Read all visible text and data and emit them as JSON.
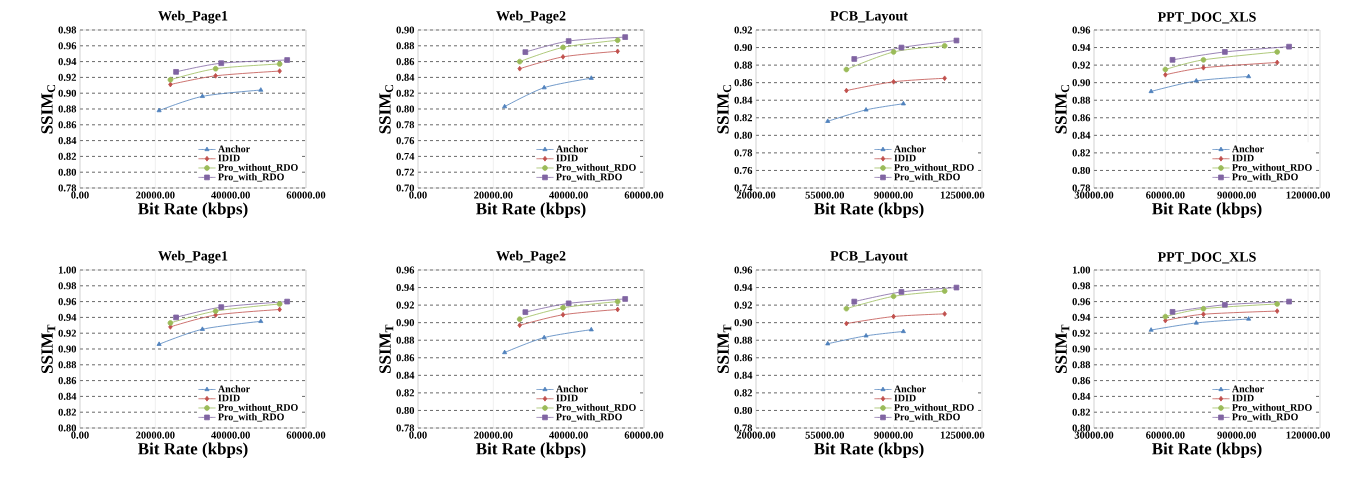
{
  "chart_data": [
    {
      "type": "line",
      "title": "Web_Page1",
      "xlabel": "Bit Rate (kbps)",
      "ylabel": "SSIM$_{C}$",
      "grid": true,
      "legend": "bottom right",
      "xlim": [
        0,
        60000
      ],
      "ylim": [
        0.78,
        0.98
      ],
      "xticks": [
        {
          "value": 0,
          "label": "0.00"
        },
        {
          "value": 20000,
          "label": "20000.00"
        },
        {
          "value": 40000,
          "label": "40000.00"
        },
        {
          "value": 60000,
          "label": "60000.00"
        }
      ],
      "yticks": [
        {
          "value": 0.78,
          "label": "0.78"
        },
        {
          "value": 0.8,
          "label": "0.80"
        },
        {
          "value": 0.82,
          "label": "0.82"
        },
        {
          "value": 0.84,
          "label": "0.84"
        },
        {
          "value": 0.86,
          "label": "0.86"
        },
        {
          "value": 0.88,
          "label": "0.88"
        },
        {
          "value": 0.9,
          "label": "0.90"
        },
        {
          "value": 0.92,
          "label": "0.92"
        },
        {
          "value": 0.94,
          "label": "0.94"
        },
        {
          "value": 0.96,
          "label": "0.96"
        },
        {
          "value": 0.98,
          "label": "0.98"
        }
      ],
      "series": [
        {
          "name": "Anchor",
          "color": "#4f81bd",
          "marker": "triangle",
          "x": [
            21000,
            32500,
            48000
          ],
          "values": [
            0.878,
            0.896,
            0.904
          ]
        },
        {
          "name": "IDID",
          "color": "#c0504d",
          "marker": "diamond",
          "x": [
            24000,
            36000,
            53000
          ],
          "values": [
            0.911,
            0.922,
            0.928
          ]
        },
        {
          "name": "Pro_without_RDO",
          "color": "#9bbb59",
          "marker": "circle",
          "x": [
            24000,
            36000,
            53000
          ],
          "values": [
            0.917,
            0.931,
            0.937
          ]
        },
        {
          "name": "Pro_with_RDO",
          "color": "#8064a2",
          "marker": "square",
          "x": [
            25500,
            37500,
            55000
          ],
          "values": [
            0.927,
            0.938,
            0.942
          ]
        }
      ]
    },
    {
      "type": "line",
      "title": "Web_Page2",
      "xlabel": "Bit Rate (kbps)",
      "ylabel": "SSIM$_{C}$",
      "grid": true,
      "legend": "bottom right",
      "xlim": [
        0,
        60000
      ],
      "ylim": [
        0.7,
        0.9
      ],
      "xticks": [
        {
          "value": 0,
          "label": "0.00"
        },
        {
          "value": 20000,
          "label": "20000.00"
        },
        {
          "value": 40000,
          "label": "40000.00"
        },
        {
          "value": 60000,
          "label": "60000.00"
        }
      ],
      "yticks": [
        {
          "value": 0.7,
          "label": "0.70"
        },
        {
          "value": 0.72,
          "label": "0.72"
        },
        {
          "value": 0.74,
          "label": "0.74"
        },
        {
          "value": 0.76,
          "label": "0.76"
        },
        {
          "value": 0.78,
          "label": "0.78"
        },
        {
          "value": 0.8,
          "label": "0.80"
        },
        {
          "value": 0.82,
          "label": "0.82"
        },
        {
          "value": 0.84,
          "label": "0.84"
        },
        {
          "value": 0.86,
          "label": "0.86"
        },
        {
          "value": 0.88,
          "label": "0.88"
        },
        {
          "value": 0.9,
          "label": "0.90"
        }
      ],
      "series": [
        {
          "name": "Anchor",
          "color": "#4f81bd",
          "marker": "triangle",
          "x": [
            23000,
            33500,
            46000
          ],
          "values": [
            0.803,
            0.827,
            0.839
          ]
        },
        {
          "name": "IDID",
          "color": "#c0504d",
          "marker": "diamond",
          "x": [
            27000,
            38500,
            53000
          ],
          "values": [
            0.851,
            0.866,
            0.873
          ]
        },
        {
          "name": "Pro_without_RDO",
          "color": "#9bbb59",
          "marker": "circle",
          "x": [
            27000,
            38500,
            53000
          ],
          "values": [
            0.86,
            0.878,
            0.887
          ]
        },
        {
          "name": "Pro_with_RDO",
          "color": "#8064a2",
          "marker": "square",
          "x": [
            28500,
            40000,
            55000
          ],
          "values": [
            0.872,
            0.886,
            0.891
          ]
        }
      ]
    },
    {
      "type": "line",
      "title": "PCB_Layout",
      "xlabel": "Bit Rate (kbps)",
      "ylabel": "SSIM$_{C}$",
      "grid": true,
      "legend": "bottom right",
      "xlim": [
        20000,
        135000
      ],
      "ylim": [
        0.74,
        0.92
      ],
      "xticks": [
        {
          "value": 20000,
          "label": "20000.00"
        },
        {
          "value": 55000,
          "label": "55000.00"
        },
        {
          "value": 90000,
          "label": "90000.00"
        },
        {
          "value": 125000,
          "label": "125000.00"
        }
      ],
      "yticks": [
        {
          "value": 0.74,
          "label": "0.74"
        },
        {
          "value": 0.76,
          "label": "0.76"
        },
        {
          "value": 0.78,
          "label": "0.78"
        },
        {
          "value": 0.8,
          "label": "0.80"
        },
        {
          "value": 0.82,
          "label": "0.82"
        },
        {
          "value": 0.84,
          "label": "0.84"
        },
        {
          "value": 0.86,
          "label": "0.86"
        },
        {
          "value": 0.88,
          "label": "0.88"
        },
        {
          "value": 0.9,
          "label": "0.90"
        },
        {
          "value": 0.92,
          "label": "0.92"
        }
      ],
      "series": [
        {
          "name": "Anchor",
          "color": "#4f81bd",
          "marker": "triangle",
          "x": [
            56500,
            76000,
            95000
          ],
          "values": [
            0.816,
            0.829,
            0.836
          ]
        },
        {
          "name": "IDID",
          "color": "#c0504d",
          "marker": "diamond",
          "x": [
            66000,
            90000,
            116000
          ],
          "values": [
            0.851,
            0.861,
            0.865
          ]
        },
        {
          "name": "Pro_without_RDO",
          "color": "#9bbb59",
          "marker": "circle",
          "x": [
            66000,
            90000,
            116000
          ],
          "values": [
            0.875,
            0.895,
            0.902
          ]
        },
        {
          "name": "Pro_with_RDO",
          "color": "#8064a2",
          "marker": "square",
          "x": [
            70000,
            94000,
            122000
          ],
          "values": [
            0.887,
            0.9,
            0.908
          ]
        }
      ]
    },
    {
      "type": "line",
      "title": "PPT_DOC_XLS",
      "xlabel": "Bit Rate (kbps)",
      "ylabel": "SSIM$_{C}$",
      "grid": true,
      "legend": "bottom right",
      "xlim": [
        30000,
        125000
      ],
      "ylim": [
        0.78,
        0.96
      ],
      "xticks": [
        {
          "value": 30000,
          "label": "30000.00"
        },
        {
          "value": 60000,
          "label": "60000.00"
        },
        {
          "value": 90000,
          "label": "90000.00"
        },
        {
          "value": 120000,
          "label": "120000.00"
        }
      ],
      "yticks": [
        {
          "value": 0.78,
          "label": "0.78"
        },
        {
          "value": 0.8,
          "label": "0.80"
        },
        {
          "value": 0.82,
          "label": "0.82"
        },
        {
          "value": 0.84,
          "label": "0.84"
        },
        {
          "value": 0.86,
          "label": "0.86"
        },
        {
          "value": 0.88,
          "label": "0.88"
        },
        {
          "value": 0.9,
          "label": "0.90"
        },
        {
          "value": 0.92,
          "label": "0.92"
        },
        {
          "value": 0.94,
          "label": "0.94"
        },
        {
          "value": 0.96,
          "label": "0.96"
        }
      ],
      "series": [
        {
          "name": "Anchor",
          "color": "#4f81bd",
          "marker": "triangle",
          "x": [
            54000,
            73000,
            95000
          ],
          "values": [
            0.89,
            0.902,
            0.907
          ]
        },
        {
          "name": "IDID",
          "color": "#c0504d",
          "marker": "diamond",
          "x": [
            60000,
            76000,
            107000
          ],
          "values": [
            0.909,
            0.917,
            0.923
          ]
        },
        {
          "name": "Pro_without_RDO",
          "color": "#9bbb59",
          "marker": "circle",
          "x": [
            60000,
            76000,
            107000
          ],
          "values": [
            0.915,
            0.926,
            0.935
          ]
        },
        {
          "name": "Pro_with_RDO",
          "color": "#8064a2",
          "marker": "square",
          "x": [
            63000,
            85000,
            112000
          ],
          "values": [
            0.926,
            0.935,
            0.941
          ]
        }
      ]
    },
    {
      "type": "line",
      "title": "Web_Page1",
      "xlabel": "Bit Rate (kbps)",
      "ylabel": "SSIM$_{T}$",
      "grid": true,
      "legend": "bottom right",
      "xlim": [
        0,
        60000
      ],
      "ylim": [
        0.8,
        1.0
      ],
      "xticks": [
        {
          "value": 0,
          "label": "0.00"
        },
        {
          "value": 20000,
          "label": "20000.00"
        },
        {
          "value": 40000,
          "label": "40000.00"
        },
        {
          "value": 60000,
          "label": "60000.00"
        }
      ],
      "yticks": [
        {
          "value": 0.8,
          "label": "0.80"
        },
        {
          "value": 0.82,
          "label": "0.82"
        },
        {
          "value": 0.84,
          "label": "0.84"
        },
        {
          "value": 0.86,
          "label": "0.86"
        },
        {
          "value": 0.88,
          "label": "0.88"
        },
        {
          "value": 0.9,
          "label": "0.90"
        },
        {
          "value": 0.92,
          "label": "0.92"
        },
        {
          "value": 0.94,
          "label": "0.94"
        },
        {
          "value": 0.96,
          "label": "0.96"
        },
        {
          "value": 0.98,
          "label": "0.98"
        },
        {
          "value": 1.0,
          "label": "1.00"
        }
      ],
      "series": [
        {
          "name": "Anchor",
          "color": "#4f81bd",
          "marker": "triangle",
          "x": [
            21000,
            32500,
            48000
          ],
          "values": [
            0.906,
            0.925,
            0.935
          ]
        },
        {
          "name": "IDID",
          "color": "#c0504d",
          "marker": "diamond",
          "x": [
            24000,
            36000,
            53000
          ],
          "values": [
            0.928,
            0.943,
            0.95
          ]
        },
        {
          "name": "Pro_without_RDO",
          "color": "#9bbb59",
          "marker": "circle",
          "x": [
            24000,
            36000,
            53000
          ],
          "values": [
            0.933,
            0.948,
            0.957
          ]
        },
        {
          "name": "Pro_with_RDO",
          "color": "#8064a2",
          "marker": "square",
          "x": [
            25500,
            37500,
            55000
          ],
          "values": [
            0.94,
            0.953,
            0.96
          ]
        }
      ]
    },
    {
      "type": "line",
      "title": "Web_Page2",
      "xlabel": "Bit Rate (kbps)",
      "ylabel": "SSIM$_{T}$",
      "grid": true,
      "legend": "bottom right",
      "xlim": [
        0,
        60000
      ],
      "ylim": [
        0.78,
        0.96
      ],
      "xticks": [
        {
          "value": 0,
          "label": "0.00"
        },
        {
          "value": 20000,
          "label": "20000.00"
        },
        {
          "value": 40000,
          "label": "40000.00"
        },
        {
          "value": 60000,
          "label": "60000.00"
        }
      ],
      "yticks": [
        {
          "value": 0.78,
          "label": "0.78"
        },
        {
          "value": 0.8,
          "label": "0.80"
        },
        {
          "value": 0.82,
          "label": "0.82"
        },
        {
          "value": 0.84,
          "label": "0.84"
        },
        {
          "value": 0.86,
          "label": "0.86"
        },
        {
          "value": 0.88,
          "label": "0.88"
        },
        {
          "value": 0.9,
          "label": "0.90"
        },
        {
          "value": 0.92,
          "label": "0.92"
        },
        {
          "value": 0.94,
          "label": "0.94"
        },
        {
          "value": 0.96,
          "label": "0.96"
        }
      ],
      "series": [
        {
          "name": "Anchor",
          "color": "#4f81bd",
          "marker": "triangle",
          "x": [
            23000,
            33500,
            46000
          ],
          "values": [
            0.866,
            0.883,
            0.892
          ]
        },
        {
          "name": "IDID",
          "color": "#c0504d",
          "marker": "diamond",
          "x": [
            27000,
            38500,
            53000
          ],
          "values": [
            0.897,
            0.909,
            0.915
          ]
        },
        {
          "name": "Pro_without_RDO",
          "color": "#9bbb59",
          "marker": "circle",
          "x": [
            27000,
            38500,
            53000
          ],
          "values": [
            0.904,
            0.917,
            0.924
          ]
        },
        {
          "name": "Pro_with_RDO",
          "color": "#8064a2",
          "marker": "square",
          "x": [
            28500,
            40000,
            55000
          ],
          "values": [
            0.912,
            0.922,
            0.927
          ]
        }
      ]
    },
    {
      "type": "line",
      "title": "PCB_Layout",
      "xlabel": "Bit Rate (kbps)",
      "ylabel": "SSIM$_{T}$",
      "grid": true,
      "legend": "bottom right",
      "xlim": [
        20000,
        135000
      ],
      "ylim": [
        0.78,
        0.96
      ],
      "xticks": [
        {
          "value": 20000,
          "label": "20000.00"
        },
        {
          "value": 55000,
          "label": "55000.00"
        },
        {
          "value": 90000,
          "label": "90000.00"
        },
        {
          "value": 125000,
          "label": "125000.00"
        }
      ],
      "yticks": [
        {
          "value": 0.78,
          "label": "0.78"
        },
        {
          "value": 0.8,
          "label": "0.80"
        },
        {
          "value": 0.82,
          "label": "0.82"
        },
        {
          "value": 0.84,
          "label": "0.84"
        },
        {
          "value": 0.86,
          "label": "0.86"
        },
        {
          "value": 0.88,
          "label": "0.88"
        },
        {
          "value": 0.9,
          "label": "0.90"
        },
        {
          "value": 0.92,
          "label": "0.92"
        },
        {
          "value": 0.94,
          "label": "0.94"
        },
        {
          "value": 0.96,
          "label": "0.96"
        }
      ],
      "series": [
        {
          "name": "Anchor",
          "color": "#4f81bd",
          "marker": "triangle",
          "x": [
            56500,
            76000,
            95000
          ],
          "values": [
            0.876,
            0.885,
            0.89
          ]
        },
        {
          "name": "IDID",
          "color": "#c0504d",
          "marker": "diamond",
          "x": [
            66000,
            90000,
            116000
          ],
          "values": [
            0.899,
            0.907,
            0.91
          ]
        },
        {
          "name": "Pro_without_RDO",
          "color": "#9bbb59",
          "marker": "circle",
          "x": [
            66000,
            90000,
            116000
          ],
          "values": [
            0.916,
            0.93,
            0.936
          ]
        },
        {
          "name": "Pro_with_RDO",
          "color": "#8064a2",
          "marker": "square",
          "x": [
            70000,
            94000,
            122000
          ],
          "values": [
            0.924,
            0.935,
            0.94
          ]
        }
      ]
    },
    {
      "type": "line",
      "title": "PPT_DOC_XLS",
      "xlabel": "Bit Rate (kbps)",
      "ylabel": "SSIM$_{T}$",
      "grid": true,
      "legend": "bottom right",
      "xlim": [
        30000,
        125000
      ],
      "ylim": [
        0.8,
        1.0
      ],
      "xticks": [
        {
          "value": 30000,
          "label": "30000.00"
        },
        {
          "value": 60000,
          "label": "60000.00"
        },
        {
          "value": 90000,
          "label": "90000.00"
        },
        {
          "value": 120000,
          "label": "120000.00"
        }
      ],
      "yticks": [
        {
          "value": 0.8,
          "label": "0.80"
        },
        {
          "value": 0.82,
          "label": "0.82"
        },
        {
          "value": 0.84,
          "label": "0.84"
        },
        {
          "value": 0.86,
          "label": "0.86"
        },
        {
          "value": 0.88,
          "label": "0.88"
        },
        {
          "value": 0.9,
          "label": "0.90"
        },
        {
          "value": 0.92,
          "label": "0.92"
        },
        {
          "value": 0.94,
          "label": "0.94"
        },
        {
          "value": 0.96,
          "label": "0.96"
        },
        {
          "value": 0.98,
          "label": "0.98"
        },
        {
          "value": 1.0,
          "label": "1.00"
        }
      ],
      "series": [
        {
          "name": "Anchor",
          "color": "#4f81bd",
          "marker": "triangle",
          "x": [
            54000,
            73000,
            95000
          ],
          "values": [
            0.924,
            0.933,
            0.938
          ]
        },
        {
          "name": "IDID",
          "color": "#c0504d",
          "marker": "diamond",
          "x": [
            60000,
            76000,
            107000
          ],
          "values": [
            0.936,
            0.944,
            0.948
          ]
        },
        {
          "name": "Pro_without_RDO",
          "color": "#9bbb59",
          "marker": "circle",
          "x": [
            60000,
            76000,
            107000
          ],
          "values": [
            0.941,
            0.951,
            0.957
          ]
        },
        {
          "name": "Pro_with_RDO",
          "color": "#8064a2",
          "marker": "square",
          "x": [
            63000,
            85000,
            112000
          ],
          "values": [
            0.947,
            0.956,
            0.96
          ]
        }
      ]
    }
  ]
}
